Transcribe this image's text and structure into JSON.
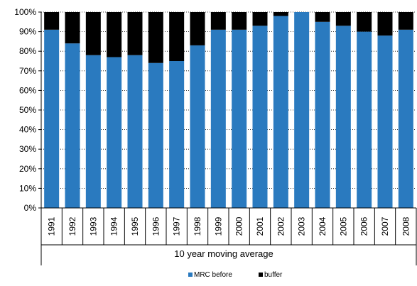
{
  "chart_data": {
    "type": "bar",
    "stacked": true,
    "categories": [
      "1991",
      "1992",
      "1993",
      "1994",
      "1995",
      "1996",
      "1997",
      "1998",
      "1999",
      "2000",
      "2001",
      "2002",
      "2003",
      "2004",
      "2005",
      "2006",
      "2007",
      "2008"
    ],
    "series": [
      {
        "name": "MRC before",
        "color": "#2a7abf",
        "values": [
          91,
          84,
          78,
          77,
          78,
          74,
          75,
          83,
          91,
          91,
          93,
          98,
          100,
          95,
          93,
          90,
          88,
          91
        ]
      },
      {
        "name": "buffer",
        "color": "#000000",
        "values": [
          9,
          16,
          22,
          23,
          22,
          26,
          25,
          17,
          9,
          9,
          7,
          2,
          0,
          5,
          7,
          10,
          12,
          9
        ]
      }
    ],
    "y_ticks": [
      "0%",
      "10%",
      "20%",
      "30%",
      "40%",
      "50%",
      "60%",
      "70%",
      "80%",
      "90%",
      "100%"
    ],
    "ylim": [
      0,
      100
    ],
    "xlabel": "10 year moving average",
    "grid": "horizontal dotted",
    "legend_position": "bottom"
  }
}
